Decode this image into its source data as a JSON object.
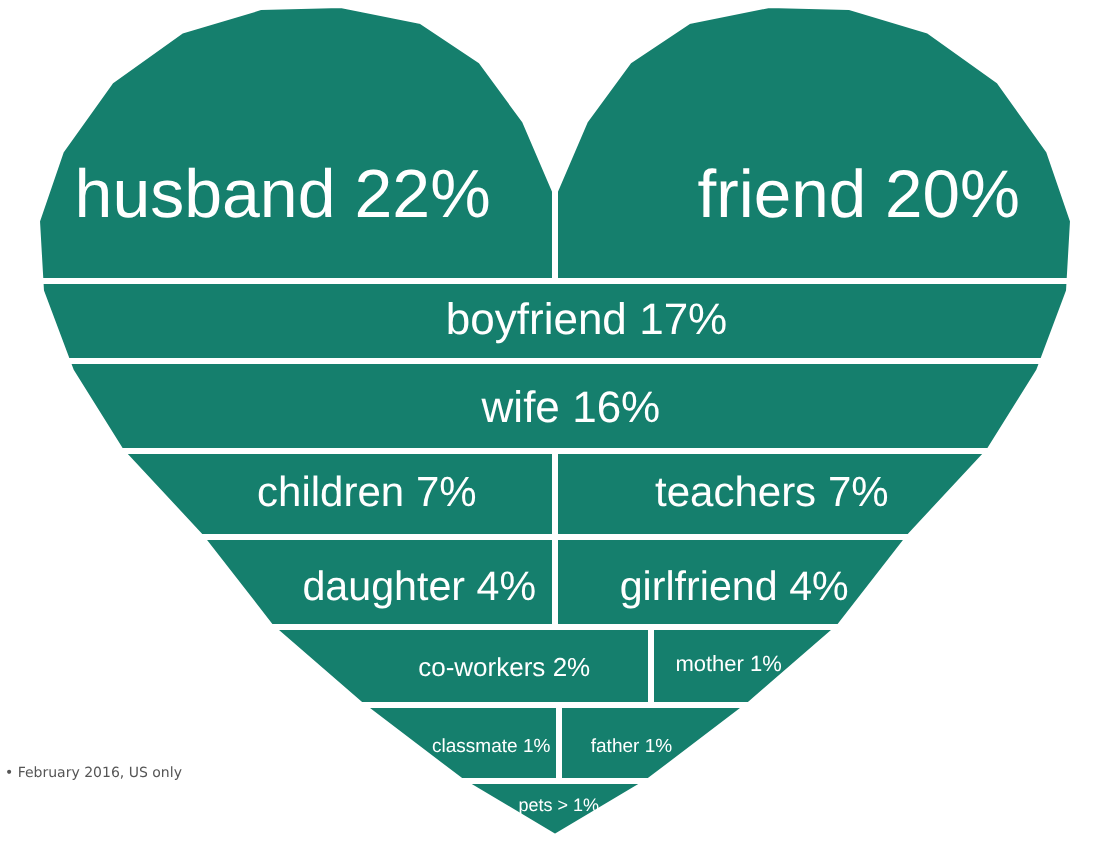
{
  "chart_data": {
    "type": "other",
    "categories": [
      "husband",
      "friend",
      "boyfriend",
      "wife",
      "children",
      "teachers",
      "daughter",
      "girlfriend",
      "co-workers",
      "mother",
      "classmate",
      "father",
      "pets"
    ],
    "values": [
      22,
      20,
      17,
      16,
      7,
      7,
      4,
      4,
      2,
      1,
      1,
      1,
      1
    ],
    "value_labels": [
      "22%",
      "20%",
      "17%",
      "16%",
      "7%",
      "7%",
      "4%",
      "4%",
      "2%",
      "1%",
      "1%",
      "1%",
      "> 1%"
    ],
    "color": "#157f6d",
    "annotations": [
      "• February 2016, US only"
    ]
  }
}
